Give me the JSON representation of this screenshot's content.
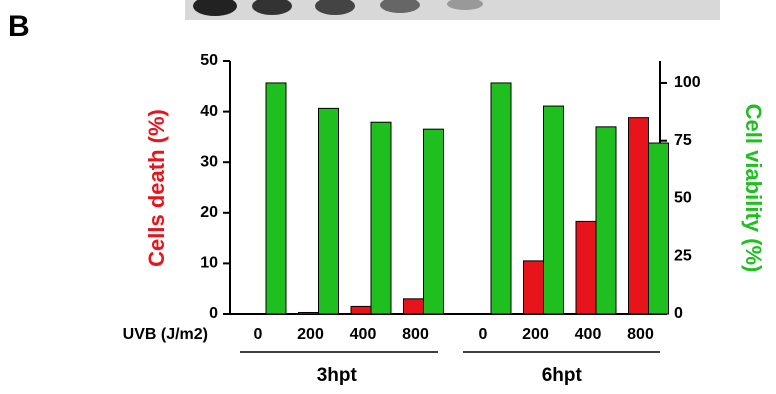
{
  "panel_label": "B",
  "chart_data": {
    "type": "bar",
    "categories": [
      "0",
      "200",
      "400",
      "800",
      "0",
      "200",
      "400",
      "800"
    ],
    "x_label": "UVB (J/m2)",
    "groups": [
      "3hpt",
      "6hpt"
    ],
    "series": [
      {
        "name": "Cells death  (%)",
        "color": "#e8141b",
        "values": [
          0,
          0.3,
          1.5,
          3,
          0,
          10.5,
          18.3,
          38.8
        ]
      },
      {
        "name": "Cell viability (%)",
        "color": "#1fbf1f",
        "axis": "y2",
        "values": [
          100,
          89,
          83,
          80,
          100,
          90,
          81,
          74
        ]
      }
    ],
    "ylim": [
      0,
      50
    ],
    "yticks": [
      0,
      10,
      20,
      30,
      40,
      50
    ],
    "y2lim": [
      0,
      109.5
    ],
    "y2ticks": [
      0,
      25,
      50,
      75,
      100
    ]
  }
}
